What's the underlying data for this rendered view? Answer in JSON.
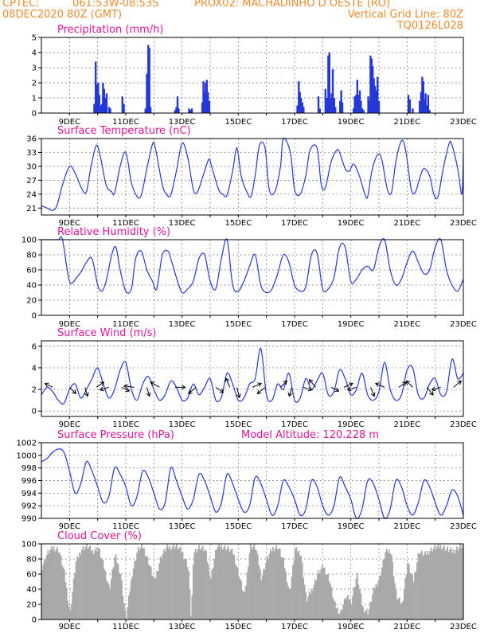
{
  "header": {
    "source": "CPTEC:",
    "coords": "061:53W-08:53S",
    "station": "PROX02: MACHADINHO D OESTE (RO)",
    "run": "08DEC2020 80Z (GMT)",
    "grid_note": "Vertical Grid Line: 80Z",
    "model": "TQ0126L028"
  },
  "colors": {
    "header": "#f08a2c",
    "title": "#e0149a",
    "line": "#2438d8",
    "cloud": "#a9a9a9"
  },
  "chart_data": [
    {
      "id": "precip",
      "type": "bar",
      "title": "Precipitation (mm/h)",
      "xlabel": "",
      "ylabel": "",
      "ylim": [
        0,
        5
      ],
      "yticks": [
        0,
        1,
        2,
        3,
        4,
        5
      ],
      "x_ticks": [
        "9DEC",
        "11DEC",
        "13DEC",
        "15DEC",
        "17DEC",
        "19DEC",
        "21DEC",
        "23DEC"
      ],
      "grid": true,
      "x": [
        9.88,
        9.93,
        9.97,
        10.02,
        10.06,
        10.1,
        10.15,
        10.19,
        10.23,
        10.28,
        10.32,
        10.41,
        10.45,
        10.88,
        10.93,
        11.7,
        11.75,
        11.8,
        11.84,
        11.88,
        12.75,
        12.8,
        12.84,
        12.88,
        13.25,
        13.3,
        13.35,
        13.72,
        13.76,
        13.8,
        13.84,
        13.88,
        13.92,
        13.97,
        17.1,
        17.15,
        17.19,
        17.23,
        17.28,
        17.32,
        17.85,
        17.9,
        18.1,
        18.15,
        18.2,
        18.24,
        18.28,
        18.32,
        18.36,
        18.41,
        18.45,
        18.62,
        18.66,
        18.7,
        19.1,
        19.14,
        19.19,
        19.23,
        19.27,
        19.32,
        19.36,
        19.41,
        19.45,
        19.62,
        19.66,
        19.7,
        19.74,
        19.78,
        19.82,
        19.86,
        19.9,
        19.95,
        20.0,
        21.05,
        21.1,
        21.2,
        21.45,
        21.5,
        21.54,
        21.58,
        21.62,
        21.66,
        21.7,
        21.75,
        21.8
      ],
      "values": [
        0.6,
        3.4,
        1.9,
        2.0,
        1.2,
        0.5,
        0.6,
        2.0,
        1.6,
        1.0,
        1.3,
        0.4,
        0.3,
        1.1,
        0.6,
        0.3,
        2.6,
        4.5,
        4.3,
        0.4,
        0.2,
        0.4,
        1.1,
        0.3,
        0.3,
        0.2,
        0.3,
        0.7,
        2.1,
        1.4,
        2.0,
        2.2,
        1.4,
        0.8,
        0.5,
        2.1,
        1.4,
        1.0,
        0.7,
        0.4,
        1.1,
        0.3,
        1.6,
        1.0,
        3.8,
        4.0,
        1.0,
        1.3,
        2.9,
        1.0,
        0.4,
        0.8,
        1.5,
        0.7,
        0.3,
        1.1,
        1.2,
        2.2,
        1.2,
        1.5,
        0.8,
        0.3,
        0.2,
        1.1,
        0.8,
        3.8,
        3.6,
        3.1,
        2.3,
        1.8,
        1.5,
        2.4,
        0.8,
        1.2,
        0.9,
        0.3,
        0.8,
        1.4,
        2.4,
        2.1,
        0.9,
        1.3,
        0.5,
        1.2,
        0.2
      ]
    },
    {
      "id": "temp",
      "type": "line",
      "title": "Surface Temperature (nC)",
      "xlabel": "",
      "ylabel": "",
      "ylim": [
        19.5,
        36
      ],
      "yticks": [
        21,
        24,
        27,
        30,
        33,
        36
      ],
      "x_ticks": [
        "9DEC",
        "11DEC",
        "13DEC",
        "15DEC",
        "17DEC",
        "19DEC",
        "21DEC",
        "23DEC"
      ],
      "grid": true,
      "x": [
        8.0,
        8.2,
        8.4,
        8.55,
        8.75,
        9.0,
        9.2,
        9.45,
        9.6,
        9.75,
        9.95,
        10.1,
        10.3,
        10.5,
        10.6,
        10.8,
        11.0,
        11.2,
        11.4,
        11.55,
        11.75,
        11.95,
        12.05,
        12.3,
        12.45,
        12.6,
        12.8,
        13.0,
        13.2,
        13.4,
        13.55,
        13.75,
        13.95,
        14.05,
        14.3,
        14.45,
        14.6,
        14.8,
        14.95,
        15.1,
        15.3,
        15.45,
        15.6,
        15.75,
        15.95,
        16.1,
        16.3,
        16.5,
        16.6,
        16.85,
        17.0,
        17.2,
        17.4,
        17.55,
        17.8,
        17.95,
        18.1,
        18.3,
        18.5,
        18.6,
        18.8,
        18.95,
        19.1,
        19.3,
        19.5,
        19.6,
        19.75,
        19.95,
        20.1,
        20.3,
        20.45,
        20.6,
        20.8,
        20.95,
        21.15,
        21.3,
        21.45,
        21.6,
        21.8,
        21.95,
        22.1,
        22.3,
        22.5,
        22.6,
        22.8,
        22.95,
        23.0
      ],
      "values": [
        21.5,
        21.0,
        20.5,
        21.5,
        26.0,
        30.0,
        28.5,
        25.0,
        24.5,
        29.5,
        34.5,
        32.0,
        26.0,
        24.5,
        24.2,
        30.0,
        33.0,
        26.5,
        23.5,
        23.8,
        29.5,
        34.8,
        34.0,
        26.0,
        24.0,
        23.8,
        29.0,
        35.0,
        32.0,
        25.0,
        24.5,
        28.0,
        31.5,
        30.0,
        25.0,
        24.0,
        23.8,
        29.0,
        34.0,
        28.0,
        24.5,
        23.5,
        28.0,
        34.5,
        34.0,
        25.0,
        24.5,
        30.0,
        36.0,
        33.0,
        25.0,
        24.0,
        28.0,
        33.5,
        34.0,
        26.0,
        25.5,
        31.0,
        33.5,
        33.0,
        29.5,
        29.0,
        30.5,
        28.0,
        24.0,
        23.5,
        29.0,
        32.5,
        31.5,
        25.0,
        24.5,
        31.0,
        35.5,
        33.5,
        25.0,
        24.5,
        27.5,
        29.5,
        28.0,
        24.0,
        23.5,
        30.0,
        35.0,
        34.5,
        29.5,
        24.0,
        33.0
      ]
    },
    {
      "id": "rh",
      "type": "line",
      "title": "Relative Humidity (%)",
      "xlabel": "",
      "ylabel": "",
      "ylim": [
        0,
        100
      ],
      "yticks": [
        0,
        20,
        40,
        60,
        80,
        100
      ],
      "x_ticks": [
        "9DEC",
        "11DEC",
        "13DEC",
        "15DEC",
        "17DEC",
        "19DEC",
        "21DEC",
        "23DEC"
      ],
      "grid": true,
      "x": [
        8.0,
        8.2,
        8.4,
        8.6,
        8.75,
        9.0,
        9.25,
        9.45,
        9.6,
        9.8,
        10.0,
        10.15,
        10.3,
        10.5,
        10.65,
        10.8,
        11.0,
        11.2,
        11.35,
        11.55,
        11.75,
        11.95,
        12.1,
        12.3,
        12.5,
        12.6,
        12.8,
        13.0,
        13.2,
        13.4,
        13.6,
        13.8,
        14.0,
        14.2,
        14.4,
        14.6,
        14.8,
        15.0,
        15.2,
        15.4,
        15.6,
        15.8,
        16.0,
        16.2,
        16.4,
        16.6,
        16.8,
        17.0,
        17.2,
        17.4,
        17.6,
        17.8,
        18.0,
        18.2,
        18.4,
        18.6,
        18.8,
        19.0,
        19.2,
        19.4,
        19.6,
        19.8,
        20.0,
        20.2,
        20.4,
        20.6,
        20.8,
        21.0,
        21.2,
        21.4,
        21.6,
        21.8,
        22.0,
        22.2,
        22.4,
        22.6,
        22.8,
        23.0
      ],
      "values": [
        100,
        100,
        100,
        100,
        100,
        45,
        50,
        60,
        70,
        75,
        40,
        32,
        45,
        80,
        90,
        60,
        32,
        35,
        75,
        85,
        60,
        45,
        35,
        80,
        85,
        75,
        50,
        30,
        35,
        45,
        75,
        80,
        45,
        35,
        75,
        100,
        40,
        32,
        45,
        65,
        80,
        40,
        30,
        35,
        55,
        80,
        70,
        40,
        32,
        38,
        80,
        82,
        35,
        35,
        50,
        90,
        90,
        45,
        48,
        60,
        65,
        60,
        90,
        100,
        60,
        40,
        48,
        70,
        85,
        70,
        55,
        60,
        90,
        100,
        60,
        40,
        32,
        48
      ]
    },
    {
      "id": "wind",
      "type": "line",
      "title": "Surface Wind (m/s)",
      "xlabel": "",
      "ylabel": "",
      "ylim": [
        -0.5,
        6.5
      ],
      "yticks": [
        0,
        2,
        4,
        6
      ],
      "x_ticks": [
        "9DEC",
        "11DEC",
        "13DEC",
        "15DEC",
        "17DEC",
        "19DEC",
        "21DEC",
        "23DEC"
      ],
      "grid": true,
      "x": [
        8.0,
        8.2,
        8.4,
        8.6,
        8.8,
        9.0,
        9.2,
        9.4,
        9.6,
        9.8,
        10.0,
        10.2,
        10.4,
        10.6,
        10.8,
        11.0,
        11.2,
        11.4,
        11.6,
        11.8,
        12.0,
        12.2,
        12.4,
        12.6,
        12.8,
        13.0,
        13.2,
        13.4,
        13.6,
        13.8,
        14.0,
        14.2,
        14.4,
        14.6,
        14.8,
        15.0,
        15.2,
        15.4,
        15.6,
        15.8,
        16.0,
        16.2,
        16.4,
        16.6,
        16.8,
        17.0,
        17.2,
        17.4,
        17.6,
        17.8,
        18.0,
        18.2,
        18.4,
        18.6,
        18.8,
        19.0,
        19.2,
        19.4,
        19.6,
        19.8,
        20.0,
        20.2,
        20.4,
        20.6,
        20.8,
        21.0,
        21.2,
        21.4,
        21.6,
        21.8,
        22.0,
        22.2,
        22.4,
        22.6,
        22.8,
        23.0
      ],
      "values": [
        1.5,
        2.2,
        1.8,
        1.0,
        0.7,
        2.0,
        2.5,
        1.2,
        2.0,
        3.0,
        4.0,
        2.5,
        1.2,
        2.0,
        3.8,
        4.5,
        2.0,
        1.0,
        2.5,
        3.2,
        2.0,
        1.0,
        1.5,
        2.8,
        2.2,
        1.0,
        1.2,
        2.5,
        1.5,
        2.2,
        3.0,
        1.0,
        1.3,
        3.5,
        2.5,
        1.0,
        1.2,
        2.5,
        3.0,
        5.8,
        1.5,
        1.0,
        2.5,
        2.0,
        3.5,
        1.0,
        1.2,
        3.0,
        2.0,
        2.8,
        3.5,
        1.5,
        1.8,
        3.8,
        3.0,
        1.5,
        2.0,
        3.5,
        1.5,
        1.0,
        1.8,
        4.5,
        2.0,
        1.0,
        1.5,
        3.8,
        4.0,
        1.5,
        1.2,
        2.5,
        3.0,
        1.5,
        1.8,
        4.8,
        3.0,
        3.5
      ],
      "vectors": [
        {
          "x": 8.4,
          "u": -0.6,
          "v": 0.3
        },
        {
          "x": 9.0,
          "u": 0.5,
          "v": -0.5
        },
        {
          "x": 9.55,
          "u": 0.2,
          "v": -0.7
        },
        {
          "x": 9.95,
          "u": 0.6,
          "v": 0.4
        },
        {
          "x": 10.4,
          "u": -0.7,
          "v": -0.2
        },
        {
          "x": 10.85,
          "u": 0.6,
          "v": -0.3
        },
        {
          "x": 11.3,
          "u": -0.8,
          "v": 0.1
        },
        {
          "x": 11.75,
          "u": 0.2,
          "v": -0.7
        },
        {
          "x": 12.2,
          "u": -0.7,
          "v": 0.4
        },
        {
          "x": 12.75,
          "u": 0.8,
          "v": 0.0
        },
        {
          "x": 13.5,
          "u": -0.6,
          "v": -0.5
        },
        {
          "x": 14.2,
          "u": 0.6,
          "v": -0.4
        },
        {
          "x": 14.7,
          "u": -0.3,
          "v": 0.7
        },
        {
          "x": 14.95,
          "u": 0.2,
          "v": -0.8
        },
        {
          "x": 15.5,
          "u": 0.7,
          "v": 0.3
        },
        {
          "x": 15.95,
          "u": -0.6,
          "v": -0.5
        },
        {
          "x": 16.5,
          "u": 0.5,
          "v": 0.5
        },
        {
          "x": 16.9,
          "u": -0.2,
          "v": -0.7
        },
        {
          "x": 17.3,
          "u": 0.7,
          "v": -0.2
        },
        {
          "x": 17.75,
          "u": -0.5,
          "v": 0.6
        },
        {
          "x": 18.3,
          "u": 0.6,
          "v": -0.3
        },
        {
          "x": 18.75,
          "u": 0.7,
          "v": 0.3
        },
        {
          "x": 19.2,
          "u": -0.7,
          "v": -0.2
        },
        {
          "x": 19.7,
          "u": 0.3,
          "v": -0.7
        },
        {
          "x": 20.2,
          "u": -0.7,
          "v": 0.3
        },
        {
          "x": 20.7,
          "u": 0.6,
          "v": 0.4
        },
        {
          "x": 21.2,
          "u": -0.5,
          "v": 0.5
        },
        {
          "x": 21.7,
          "u": 0.5,
          "v": -0.6
        },
        {
          "x": 22.2,
          "u": -0.7,
          "v": -0.2
        },
        {
          "x": 22.65,
          "u": 0.6,
          "v": 0.5
        }
      ]
    },
    {
      "id": "pressure",
      "type": "line",
      "title": "Surface Pressure (hPa)",
      "annotation": "Model Altitude: 120.228 m",
      "xlabel": "",
      "ylabel": "",
      "ylim": [
        990,
        1002
      ],
      "yticks": [
        990,
        992,
        994,
        996,
        998,
        1000,
        1002
      ],
      "x_ticks": [
        "9DEC",
        "11DEC",
        "13DEC",
        "15DEC",
        "17DEC",
        "19DEC",
        "21DEC",
        "23DEC"
      ],
      "grid": true,
      "x": [
        8.0,
        8.2,
        8.4,
        8.6,
        8.8,
        9.0,
        9.2,
        9.4,
        9.6,
        9.8,
        10.0,
        10.2,
        10.4,
        10.6,
        10.8,
        11.0,
        11.2,
        11.4,
        11.6,
        11.8,
        12.0,
        12.2,
        12.4,
        12.6,
        12.8,
        13.0,
        13.2,
        13.4,
        13.6,
        13.8,
        14.0,
        14.2,
        14.4,
        14.6,
        14.8,
        15.0,
        15.2,
        15.4,
        15.6,
        15.8,
        16.0,
        16.2,
        16.4,
        16.6,
        16.8,
        17.0,
        17.2,
        17.4,
        17.6,
        17.8,
        18.0,
        18.2,
        18.4,
        18.6,
        18.8,
        19.0,
        19.2,
        19.4,
        19.6,
        19.8,
        20.0,
        20.2,
        20.4,
        20.6,
        20.8,
        21.0,
        21.2,
        21.4,
        21.6,
        21.8,
        22.0,
        22.2,
        22.4,
        22.6,
        22.8,
        23.0
      ],
      "values": [
        999,
        999.5,
        1000.5,
        1001,
        1000.5,
        997.5,
        994,
        995.5,
        999,
        997.5,
        995,
        992.5,
        993.5,
        998,
        997,
        995,
        992,
        993.5,
        997.5,
        996.5,
        994,
        991.5,
        992.5,
        998,
        996,
        993.5,
        991.5,
        993,
        997,
        996,
        993.5,
        991,
        992.5,
        997,
        995.5,
        993,
        991,
        992,
        996.5,
        995.5,
        993,
        990.5,
        992,
        996,
        995,
        993,
        990.5,
        991.5,
        996,
        995,
        992,
        990.5,
        992,
        996.5,
        995,
        993,
        990,
        991.5,
        996,
        995.5,
        993,
        990,
        991.5,
        996,
        995,
        992,
        990.5,
        992.5,
        996,
        995,
        992.5,
        990.5,
        992,
        994.5,
        993.5,
        990.5
      ]
    },
    {
      "id": "cloud",
      "type": "area",
      "title": "Cloud Cover (%)",
      "xlabel": "",
      "ylabel": "",
      "ylim": [
        0,
        100
      ],
      "yticks": [
        0,
        20,
        40,
        60,
        80,
        100
      ],
      "x_ticks": [
        "9DEC",
        "11DEC",
        "13DEC",
        "15DEC",
        "17DEC",
        "19DEC",
        "21DEC",
        "23DEC"
      ],
      "grid": true,
      "x": [
        8.0,
        8.2,
        8.4,
        8.6,
        8.8,
        8.95,
        9.0,
        9.2,
        9.4,
        9.6,
        9.8,
        10.0,
        10.2,
        10.4,
        10.6,
        10.8,
        10.95,
        11.0,
        11.2,
        11.4,
        11.6,
        11.8,
        12.0,
        12.2,
        12.4,
        12.6,
        12.8,
        13.0,
        13.2,
        13.3,
        13.4,
        13.6,
        13.8,
        14.0,
        14.2,
        14.4,
        14.6,
        14.8,
        15.0,
        15.2,
        15.4,
        15.6,
        15.8,
        16.0,
        16.2,
        16.4,
        16.6,
        16.8,
        17.0,
        17.2,
        17.4,
        17.6,
        17.8,
        18.0,
        18.2,
        18.4,
        18.6,
        18.8,
        19.0,
        19.2,
        19.4,
        19.6,
        19.8,
        20.0,
        20.2,
        20.4,
        20.6,
        20.8,
        21.0,
        21.2,
        21.4,
        21.6,
        21.8,
        22.0,
        22.2,
        22.4,
        22.6,
        22.8,
        23.0
      ],
      "values": [
        70,
        88,
        95,
        92,
        60,
        20,
        10,
        75,
        93,
        97,
        90,
        95,
        70,
        40,
        85,
        60,
        10,
        4,
        60,
        92,
        96,
        75,
        50,
        80,
        94,
        96,
        97,
        88,
        70,
        2,
        90,
        96,
        92,
        55,
        95,
        97,
        94,
        88,
        60,
        30,
        97,
        95,
        55,
        80,
        94,
        96,
        75,
        35,
        92,
        88,
        25,
        40,
        60,
        70,
        55,
        20,
        8,
        30,
        25,
        60,
        15,
        10,
        40,
        55,
        88,
        92,
        30,
        20,
        75,
        50,
        90,
        85,
        92,
        95,
        97,
        93,
        90,
        95,
        98
      ]
    }
  ]
}
